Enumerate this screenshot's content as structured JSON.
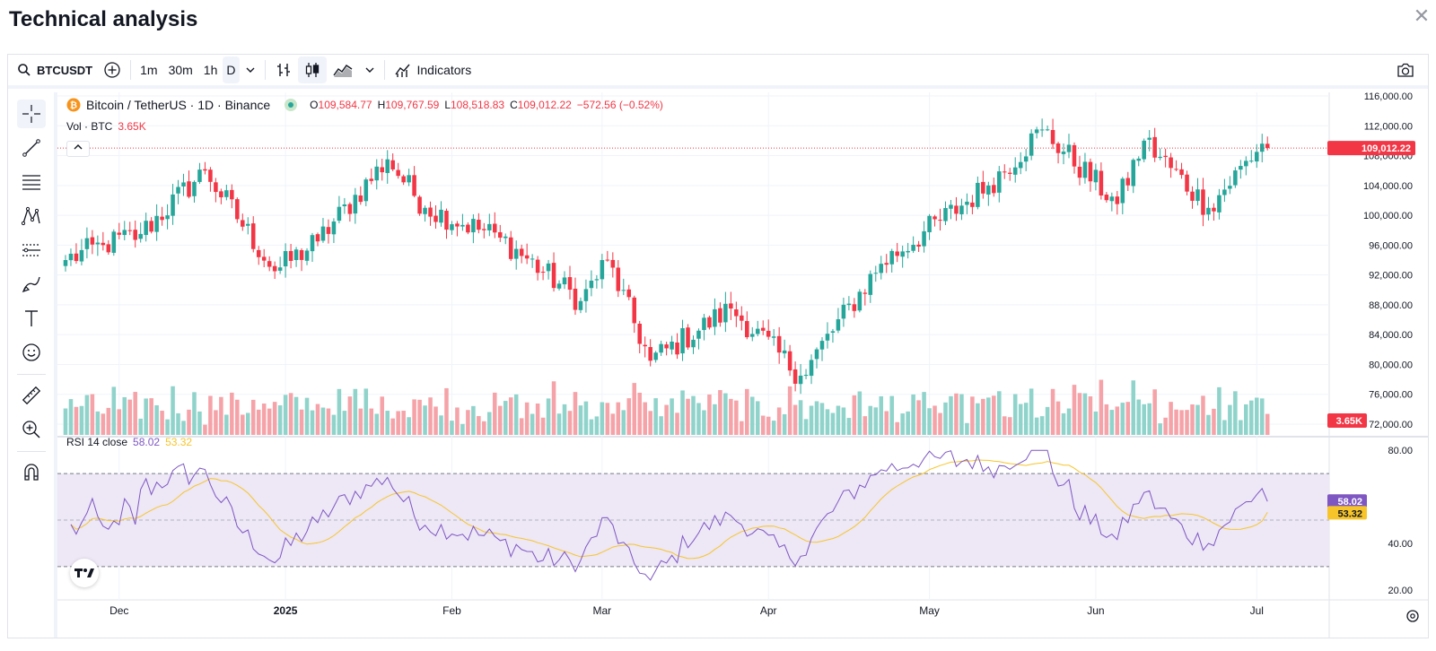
{
  "page": {
    "title": "Technical analysis",
    "close_icon": "close-icon"
  },
  "toolbar": {
    "symbol": "BTCUSDT",
    "intervals": [
      "1m",
      "30m",
      "1h",
      "D"
    ],
    "active_interval": "D",
    "indicators_label": "Indicators"
  },
  "legend": {
    "title": "Bitcoin / TetherUS · 1D · Binance",
    "o_label": "O",
    "o": "109,584.77",
    "h_label": "H",
    "h": "109,767.59",
    "l_label": "L",
    "l": "108,518.83",
    "c_label": "C",
    "c": "109,012.22",
    "change": "−572.56 (−0.52%)",
    "vol_label": "Vol · BTC",
    "vol_value": "3.65K"
  },
  "rsi_legend": {
    "label": "RSI 14 close",
    "rsi": "58.02",
    "ma": "53.32"
  },
  "price_axis": {
    "ticks": [
      "116,000.00",
      "112,000.00",
      "108,000.00",
      "104,000.00",
      "100,000.00",
      "96,000.00",
      "92,000.00",
      "88,000.00",
      "84,000.00",
      "80,000.00",
      "76,000.00",
      "72,000.00"
    ],
    "last_price": "109,012.22",
    "last_volume": "3.65K"
  },
  "rsi_axis": {
    "ticks": [
      "80.00",
      "40.00",
      "20.00"
    ],
    "rsi_tag": "58.02",
    "ma_tag": "53.32"
  },
  "time_axis": {
    "labels": [
      "Dec",
      "2025",
      "Feb",
      "Mar",
      "Apr",
      "May",
      "Jun",
      "Jul"
    ]
  },
  "colors": {
    "up": "#26a69a",
    "down": "#f23645",
    "up_vol": "#8fd3cb",
    "down_vol": "#f5a3a8",
    "rsi": "#7e57c2",
    "rsi_ma": "#f7c52a",
    "rsi_band": "#ede7f6"
  },
  "chart_data": {
    "type": "candlestick",
    "timeframe": "1D",
    "symbol": "BTCUSDT",
    "ylim": [
      72000,
      116000
    ],
    "x_range": [
      "2024-11-21",
      "2025-07-08"
    ],
    "ohlc_anchor_points": [
      {
        "date": "2024-11-21",
        "close": 94000
      },
      {
        "date": "2024-11-28",
        "close": 96000
      },
      {
        "date": "2024-12-05",
        "close": 97500
      },
      {
        "date": "2024-12-17",
        "close": 106000
      },
      {
        "date": "2024-12-30",
        "close": 92500
      },
      {
        "date": "2025-01-07",
        "close": 96500
      },
      {
        "date": "2025-01-20",
        "close": 107500
      },
      {
        "date": "2025-01-27",
        "close": 101000
      },
      {
        "date": "2025-02-10",
        "close": 97000
      },
      {
        "date": "2025-02-25",
        "close": 88500
      },
      {
        "date": "2025-03-02",
        "close": 94000
      },
      {
        "date": "2025-03-10",
        "close": 80500
      },
      {
        "date": "2025-03-25",
        "close": 87500
      },
      {
        "date": "2025-04-07",
        "close": 78500
      },
      {
        "date": "2025-04-22",
        "close": 93500
      },
      {
        "date": "2025-05-12",
        "close": 104000
      },
      {
        "date": "2025-05-22",
        "close": 111500
      },
      {
        "date": "2025-06-05",
        "close": 101500
      },
      {
        "date": "2025-06-10",
        "close": 110000
      },
      {
        "date": "2025-06-22",
        "close": 101000
      },
      {
        "date": "2025-07-02",
        "close": 109600
      },
      {
        "date": "2025-07-03",
        "close": 109012.22
      }
    ],
    "rsi_levels": {
      "upper": 70,
      "middle": 50,
      "lower": 30
    },
    "rsi_ylim": [
      15,
      85
    ],
    "rsi_last": 58.02,
    "rsi_ma_last": 53.32
  }
}
